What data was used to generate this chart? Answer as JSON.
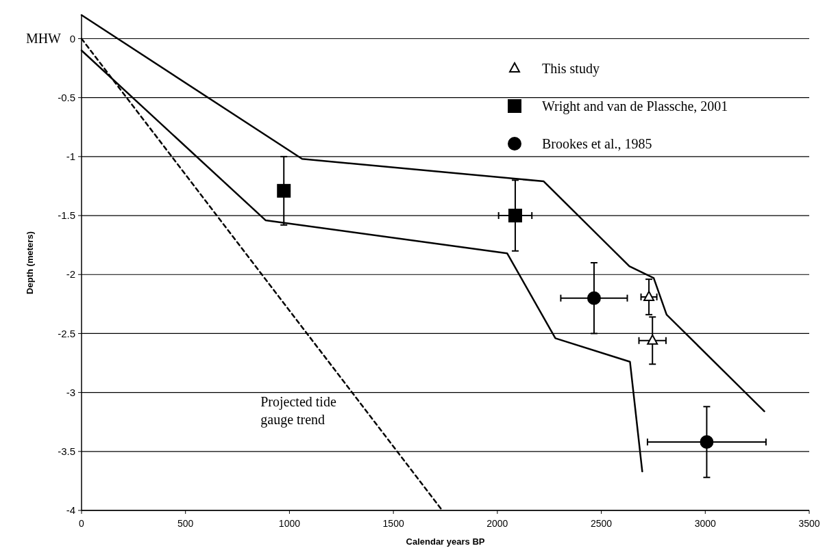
{
  "chart_data": {
    "type": "line",
    "xlabel": "Calendar years BP",
    "ylabel": "Depth (meters)",
    "xlim": [
      0,
      3500
    ],
    "xticks": [
      0,
      500,
      1000,
      1500,
      2000,
      2500,
      3000,
      3500
    ],
    "ylim": [
      -4,
      0.2
    ],
    "yticks": [
      0,
      -0.5,
      -1,
      -1.5,
      -2,
      -2.5,
      -3,
      -3.5,
      -4
    ],
    "grid": "y",
    "legend": "top right",
    "line_style": "solid",
    "marker": "none",
    "annotations": [
      "MHW",
      "Projected tide gauge trend"
    ],
    "series": [
      {
        "type": "scatter",
        "name": "This study",
        "color": "#000000",
        "marker": "triangle",
        "x": [
          2729,
          2746
        ],
        "values": [
          -2.19,
          -2.56
        ],
        "errors": [
          0.15,
          0.2
        ],
        "xerrors": [
          38,
          65
        ]
      },
      {
        "type": "scatter",
        "name": "Wright and van de Plassche, 2001",
        "color": "#000000",
        "marker": "square",
        "x": [
          973,
          2086
        ],
        "values": [
          -1.29,
          -1.5
        ],
        "errors": [
          0.29,
          0.3
        ],
        "xerrors": [
          25,
          80
        ]
      },
      {
        "type": "scatter",
        "name": "Brookes et al., 1985",
        "color": "#000000",
        "marker": "circle",
        "x": [
          2465,
          3007
        ],
        "values": [
          -2.2,
          -3.42
        ],
        "errors": [
          0.3,
          0.3
        ],
        "xerrors": [
          160,
          285
        ]
      },
      {
        "color": "#000000",
        "x": [
          0,
          1061,
          2223,
          2635,
          2752,
          2814,
          3284
        ],
        "values": [
          0.2,
          -1.02,
          -1.21,
          -1.93,
          -2.03,
          -2.34,
          -3.16
        ]
      },
      {
        "color": "#000000",
        "x": [
          0,
          885,
          2047,
          2279,
          2638,
          2697
        ],
        "values": [
          -0.1,
          -1.54,
          -1.82,
          -2.54,
          -2.74,
          -3.67
        ]
      },
      {
        "color": "#000000",
        "line_style": "dashed",
        "x": [
          0,
          1735
        ],
        "values": [
          0,
          -4
        ]
      }
    ]
  }
}
